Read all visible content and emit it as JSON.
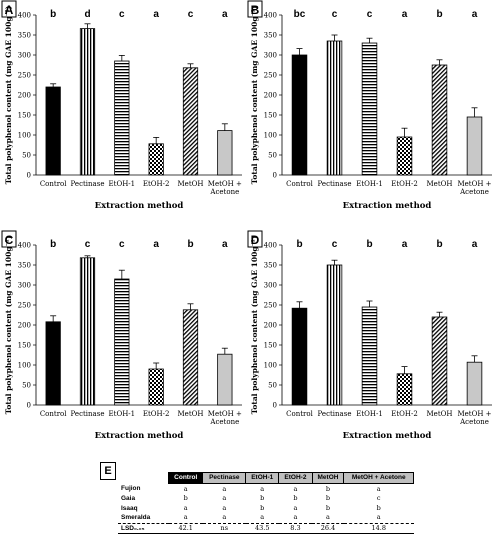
{
  "chart_data": [
    {
      "panel": "A",
      "type": "bar",
      "categories": [
        "Control",
        "Pectinase",
        "EtOH-1",
        "EtOH-2",
        "MetOH",
        "MetOH + Acetone"
      ],
      "values": [
        220,
        366,
        285,
        78,
        268,
        111
      ],
      "errors": [
        8,
        12,
        14,
        16,
        10,
        17
      ],
      "letters": [
        "b",
        "d",
        "c",
        "a",
        "c",
        "a"
      ],
      "xlabel": "Extraction method",
      "ylabel": "Total polyphenol content (mg GAE 100g⁻¹)",
      "ylim": [
        0,
        400
      ],
      "yticks": [
        0,
        50,
        100,
        150,
        200,
        250,
        300,
        350,
        400
      ]
    },
    {
      "panel": "B",
      "type": "bar",
      "categories": [
        "Control",
        "Pectinase",
        "EtOH-1",
        "EtOH-2",
        "MetOH",
        "MetOH + Acetone"
      ],
      "values": [
        300,
        335,
        330,
        95,
        275,
        145
      ],
      "errors": [
        16,
        15,
        12,
        22,
        13,
        23
      ],
      "letters": [
        "bc",
        "c",
        "c",
        "a",
        "b",
        "a"
      ],
      "xlabel": "Extraction method",
      "ylabel": "Total polyphenol content (mg GAE 100g⁻¹)",
      "ylim": [
        0,
        400
      ],
      "yticks": [
        0,
        50,
        100,
        150,
        200,
        250,
        300,
        350,
        400
      ]
    },
    {
      "panel": "C",
      "type": "bar",
      "categories": [
        "Control",
        "Pectinase",
        "EtOH-1",
        "EtOH-2",
        "MetOH",
        "MetOH + Acetone"
      ],
      "values": [
        208,
        368,
        315,
        90,
        238,
        127
      ],
      "errors": [
        15,
        5,
        22,
        15,
        15,
        15
      ],
      "letters": [
        "b",
        "c",
        "c",
        "a",
        "b",
        "a"
      ],
      "xlabel": "Extraction method",
      "ylabel": "Total polyphenol content (mg GAE 100g⁻¹)",
      "ylim": [
        0,
        400
      ],
      "yticks": [
        0,
        50,
        100,
        150,
        200,
        250,
        300,
        350,
        400
      ]
    },
    {
      "panel": "D",
      "type": "bar",
      "categories": [
        "Control",
        "Pectinase",
        "EtOH-1",
        "EtOH-2",
        "MetOH",
        "MetOH + Acetone"
      ],
      "values": [
        242,
        350,
        245,
        78,
        220,
        107
      ],
      "errors": [
        16,
        12,
        15,
        18,
        12,
        16
      ],
      "letters": [
        "b",
        "c",
        "b",
        "a",
        "b",
        "a"
      ],
      "xlabel": "Extraction method",
      "ylabel": "Total polyphenol content (mg GAE 100g⁻¹)",
      "ylim": [
        0,
        400
      ],
      "yticks": [
        0,
        50,
        100,
        150,
        200,
        250,
        300,
        350,
        400
      ]
    }
  ],
  "table": {
    "label": "E",
    "headers": [
      "",
      "Control",
      "Pectinase",
      "EtOH-1",
      "EtOH-2",
      "MetOH",
      "MetOH + Acetone"
    ],
    "rows": [
      {
        "name": "Fujion",
        "cells": [
          "a",
          "a",
          "a",
          "a",
          "b",
          "a"
        ]
      },
      {
        "name": "Gaia",
        "cells": [
          "b",
          "a",
          "b",
          "b",
          "b",
          "c"
        ]
      },
      {
        "name": "Isaaq",
        "cells": [
          "a",
          "a",
          "b",
          "a",
          "b",
          "b"
        ]
      },
      {
        "name": "Smeralda",
        "cells": [
          "a",
          "a",
          "a",
          "a",
          "a",
          "a"
        ]
      }
    ],
    "lsd": {
      "name": "LSD₀.₀₅",
      "cells": [
        "42.1",
        "ns",
        "43.5",
        "8.3",
        "26.4",
        "14.8"
      ]
    }
  },
  "bar_colors": {
    "control": "#000000",
    "mo_acetone": "#c8c8c8",
    "axis": "#000000"
  }
}
